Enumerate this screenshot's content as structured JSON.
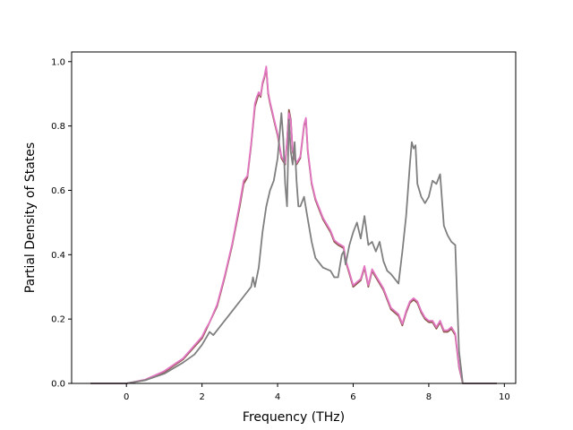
{
  "chart_data": {
    "type": "line",
    "title": "",
    "xlabel": "Frequency (THz)",
    "ylabel": "Partial Density of States",
    "xlim": [
      -1.45,
      10.3
    ],
    "ylim": [
      0,
      1.03
    ],
    "xticks": [
      0,
      2,
      4,
      6,
      8,
      10
    ],
    "yticks": [
      0.0,
      0.2,
      0.4,
      0.6,
      0.8,
      1.0
    ],
    "xtick_labels": [
      "0",
      "2",
      "4",
      "6",
      "8",
      "10"
    ],
    "ytick_labels": [
      "0.0",
      "0.2",
      "0.4",
      "0.6",
      "0.8",
      "1.0"
    ],
    "grid": false,
    "legend": "none",
    "series": [
      {
        "color": "#8c564b",
        "x": [
          -0.95,
          0.0,
          0.5,
          1.0,
          1.5,
          2.0,
          2.1,
          2.2,
          2.4,
          2.6,
          2.8,
          3.0,
          3.1,
          3.2,
          3.3,
          3.4,
          3.45,
          3.5,
          3.55,
          3.6,
          3.65,
          3.7,
          3.75,
          3.8,
          3.9,
          4.0,
          4.1,
          4.2,
          4.25,
          4.3,
          4.35,
          4.4,
          4.5,
          4.6,
          4.7,
          4.75,
          4.8,
          4.9,
          5.0,
          5.2,
          5.4,
          5.5,
          5.6,
          5.75,
          5.8,
          5.9,
          6.0,
          6.1,
          6.2,
          6.3,
          6.4,
          6.5,
          6.6,
          6.8,
          7.0,
          7.2,
          7.3,
          7.4,
          7.5,
          7.6,
          7.7,
          7.8,
          7.9,
          8.0,
          8.1,
          8.2,
          8.3,
          8.4,
          8.5,
          8.6,
          8.7,
          8.8,
          8.9,
          9.0,
          9.8
        ],
        "y": [
          0.0,
          0.0,
          0.01,
          0.035,
          0.075,
          0.14,
          0.165,
          0.19,
          0.24,
          0.33,
          0.43,
          0.55,
          0.62,
          0.64,
          0.74,
          0.86,
          0.88,
          0.9,
          0.89,
          0.93,
          0.95,
          0.98,
          0.9,
          0.87,
          0.82,
          0.77,
          0.7,
          0.68,
          0.75,
          0.85,
          0.82,
          0.72,
          0.68,
          0.7,
          0.8,
          0.82,
          0.72,
          0.62,
          0.57,
          0.51,
          0.47,
          0.44,
          0.43,
          0.42,
          0.38,
          0.34,
          0.3,
          0.31,
          0.32,
          0.36,
          0.3,
          0.35,
          0.33,
          0.29,
          0.23,
          0.21,
          0.18,
          0.22,
          0.25,
          0.26,
          0.25,
          0.22,
          0.2,
          0.19,
          0.19,
          0.17,
          0.19,
          0.16,
          0.16,
          0.17,
          0.15,
          0.05,
          0.0,
          0.0,
          0.0
        ]
      },
      {
        "color": "#e377c2",
        "x": [
          -0.95,
          0.0,
          0.5,
          1.0,
          1.5,
          2.0,
          2.1,
          2.2,
          2.4,
          2.6,
          2.8,
          3.0,
          3.1,
          3.2,
          3.3,
          3.4,
          3.45,
          3.5,
          3.55,
          3.6,
          3.65,
          3.7,
          3.75,
          3.8,
          3.9,
          4.0,
          4.1,
          4.2,
          4.25,
          4.3,
          4.35,
          4.4,
          4.5,
          4.6,
          4.7,
          4.75,
          4.8,
          4.9,
          5.0,
          5.2,
          5.4,
          5.5,
          5.6,
          5.75,
          5.8,
          5.9,
          6.0,
          6.1,
          6.2,
          6.3,
          6.4,
          6.5,
          6.6,
          6.8,
          7.0,
          7.2,
          7.3,
          7.4,
          7.5,
          7.6,
          7.7,
          7.8,
          7.9,
          8.0,
          8.1,
          8.2,
          8.3,
          8.4,
          8.5,
          8.6,
          8.7,
          8.8,
          8.9,
          9.0,
          9.8
        ],
        "y": [
          0.0,
          0.0,
          0.012,
          0.038,
          0.078,
          0.145,
          0.17,
          0.19,
          0.245,
          0.335,
          0.435,
          0.56,
          0.63,
          0.645,
          0.745,
          0.87,
          0.89,
          0.905,
          0.895,
          0.935,
          0.955,
          0.985,
          0.905,
          0.875,
          0.825,
          0.775,
          0.705,
          0.685,
          0.755,
          0.84,
          0.815,
          0.725,
          0.685,
          0.705,
          0.805,
          0.825,
          0.725,
          0.625,
          0.575,
          0.515,
          0.475,
          0.445,
          0.435,
          0.425,
          0.385,
          0.345,
          0.305,
          0.315,
          0.325,
          0.365,
          0.305,
          0.355,
          0.335,
          0.295,
          0.235,
          0.215,
          0.185,
          0.225,
          0.255,
          0.265,
          0.255,
          0.225,
          0.205,
          0.195,
          0.195,
          0.175,
          0.195,
          0.165,
          0.165,
          0.175,
          0.155,
          0.055,
          0.0,
          0.0,
          0.0
        ]
      },
      {
        "color": "#7f7f7f",
        "x": [
          -0.95,
          0.0,
          0.5,
          1.0,
          1.5,
          1.8,
          2.0,
          2.1,
          2.2,
          2.3,
          2.5,
          2.7,
          2.9,
          3.1,
          3.3,
          3.35,
          3.4,
          3.5,
          3.6,
          3.7,
          3.8,
          3.9,
          4.0,
          4.1,
          4.15,
          4.2,
          4.25,
          4.3,
          4.35,
          4.4,
          4.45,
          4.5,
          4.55,
          4.6,
          4.7,
          4.8,
          4.9,
          5.0,
          5.2,
          5.4,
          5.5,
          5.6,
          5.7,
          5.75,
          5.8,
          5.9,
          6.0,
          6.1,
          6.2,
          6.3,
          6.4,
          6.5,
          6.6,
          6.7,
          6.8,
          6.9,
          7.0,
          7.2,
          7.3,
          7.4,
          7.5,
          7.55,
          7.6,
          7.65,
          7.7,
          7.8,
          7.9,
          8.0,
          8.1,
          8.2,
          8.3,
          8.4,
          8.5,
          8.6,
          8.7,
          8.8,
          8.9,
          9.0,
          9.8
        ],
        "y": [
          0.0,
          0.0,
          0.01,
          0.03,
          0.065,
          0.09,
          0.12,
          0.14,
          0.16,
          0.15,
          0.18,
          0.21,
          0.24,
          0.27,
          0.3,
          0.33,
          0.3,
          0.36,
          0.47,
          0.55,
          0.6,
          0.63,
          0.7,
          0.84,
          0.76,
          0.62,
          0.55,
          0.82,
          0.72,
          0.68,
          0.75,
          0.63,
          0.55,
          0.55,
          0.58,
          0.51,
          0.44,
          0.39,
          0.36,
          0.35,
          0.33,
          0.33,
          0.4,
          0.41,
          0.37,
          0.43,
          0.47,
          0.5,
          0.45,
          0.52,
          0.43,
          0.44,
          0.41,
          0.44,
          0.38,
          0.35,
          0.34,
          0.31,
          0.41,
          0.52,
          0.68,
          0.75,
          0.73,
          0.74,
          0.62,
          0.58,
          0.56,
          0.58,
          0.63,
          0.62,
          0.65,
          0.49,
          0.46,
          0.44,
          0.43,
          0.1,
          0.0,
          0.0,
          0.0
        ]
      }
    ]
  }
}
